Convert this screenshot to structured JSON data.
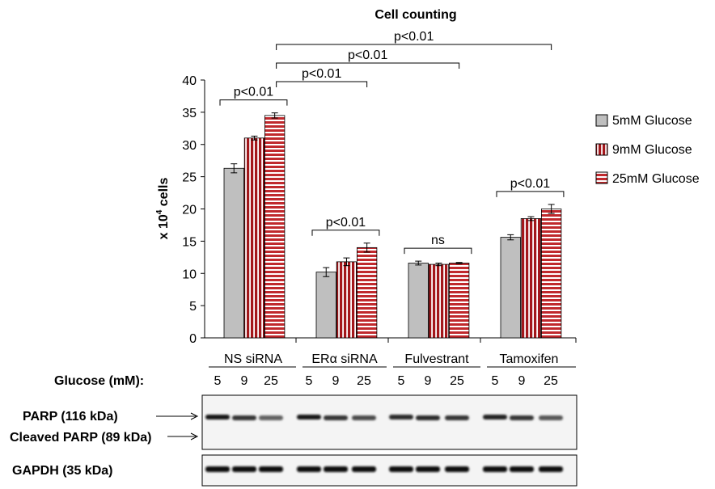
{
  "chart_data": {
    "type": "bar",
    "title": "Cell counting",
    "ylabel_prefix": "x 10",
    "ylabel_sup": "4",
    "ylabel_suffix": " cells",
    "ylim": [
      0,
      40
    ],
    "yticks": [
      0,
      5,
      10,
      15,
      20,
      25,
      30,
      35,
      40
    ],
    "categories": [
      "NS siRNA",
      "ERα siRNA",
      "Fulvestrant",
      "Tamoxifen"
    ],
    "series": [
      {
        "name": "5mM Glucose",
        "values": [
          26.3,
          10.2,
          11.6,
          15.6
        ],
        "errors": [
          0.7,
          0.7,
          0.3,
          0.4
        ],
        "color": "#bfbfbf",
        "pattern": "solid"
      },
      {
        "name": "9mM Glucose",
        "values": [
          31.0,
          11.8,
          11.4,
          18.5
        ],
        "errors": [
          0.3,
          0.6,
          0.2,
          0.3
        ],
        "color": "#a3171b",
        "pattern": "vertical"
      },
      {
        "name": "25mM Glucose",
        "values": [
          34.5,
          14.0,
          11.6,
          20.0
        ],
        "errors": [
          0.4,
          0.7,
          0.1,
          0.7
        ],
        "color": "#c0292d",
        "pattern": "horizontal"
      }
    ],
    "legend_position": "right",
    "within_group_annotations": [
      "p<0.01",
      "p<0.01",
      "ns",
      "p<0.01"
    ],
    "between_group_annotations": [
      {
        "from": "NS siRNA",
        "to": "ERα siRNA",
        "label": "p<0.01"
      },
      {
        "from": "NS siRNA",
        "to": "Fulvestrant",
        "label": "p<0.01"
      },
      {
        "from": "NS siRNA",
        "to": "Tamoxifen",
        "label": "p<0.01"
      }
    ]
  },
  "blot": {
    "glucose_label": "Glucose (mM):",
    "lane_labels": [
      "5",
      "9",
      "25"
    ],
    "parp_label": "PARP (116 kDa)",
    "cleaved_label": "Cleaved PARP (89 kDa)",
    "gapdh_label": "GAPDH (35 kDa)",
    "parp_intensity": [
      0.9,
      0.75,
      0.55,
      0.9,
      0.75,
      0.65,
      0.8,
      0.8,
      0.75,
      0.85,
      0.75,
      0.6
    ],
    "gapdh_intensity": [
      0.95,
      0.95,
      0.95,
      0.95,
      0.95,
      0.95,
      0.92,
      0.95,
      0.92,
      0.95,
      0.95,
      0.95
    ]
  }
}
